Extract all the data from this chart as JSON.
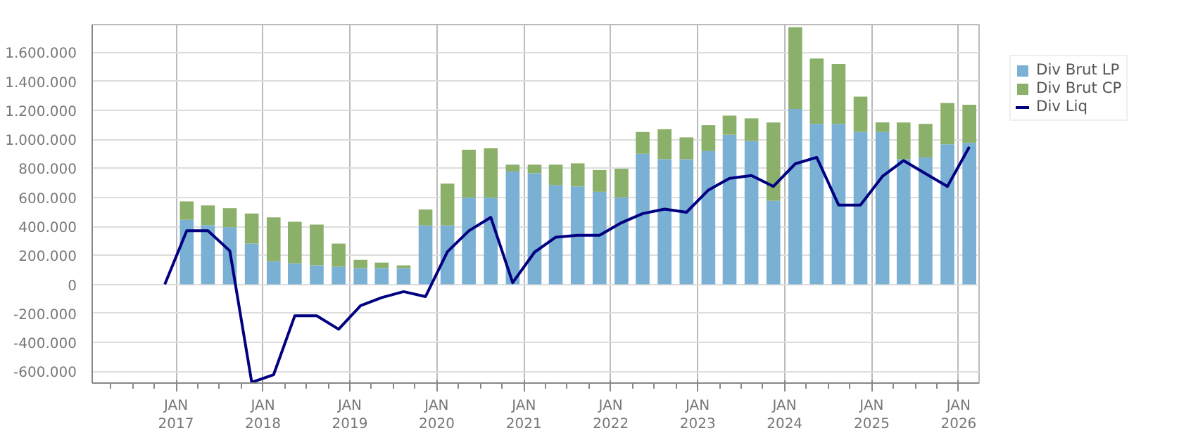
{
  "chart_data": {
    "type": "bar",
    "stacked": true,
    "x": [
      "2016-11-15",
      "2017-02-15",
      "2017-05-15",
      "2017-08-15",
      "2017-11-15",
      "2018-02-15",
      "2018-05-15",
      "2018-08-15",
      "2018-11-15",
      "2019-02-15",
      "2019-05-15",
      "2019-08-15",
      "2019-11-15",
      "2020-02-15",
      "2020-05-15",
      "2020-08-15",
      "2020-11-15",
      "2021-02-15",
      "2021-05-15",
      "2021-08-15",
      "2021-11-15",
      "2022-02-15",
      "2022-05-15",
      "2022-08-15",
      "2022-11-15",
      "2023-02-15",
      "2023-05-15",
      "2023-08-15",
      "2023-11-15",
      "2024-02-15",
      "2024-05-15",
      "2024-08-15",
      "2024-11-15",
      "2025-02-15",
      "2025-05-15",
      "2025-08-15",
      "2025-11-15",
      "2026-02-15"
    ],
    "series": [
      {
        "name": "Div Brut LP",
        "color": "#7ab0d4",
        "values": [
          0,
          445000,
          409000,
          394000,
          281000,
          159000,
          144000,
          131000,
          122000,
          112000,
          112000,
          112000,
          406000,
          406000,
          597000,
          597000,
          778000,
          766000,
          684000,
          675000,
          638000,
          600000,
          900000,
          863000,
          863000,
          919000,
          1031000,
          988000,
          575000,
          1209000,
          1106000,
          1106000,
          1050000,
          1050000,
          863000,
          875000,
          966000,
          975000
        ]
      },
      {
        "name": "Div Brut CP",
        "color": "#8bb06a",
        "values": [
          0,
          127000,
          135000,
          131000,
          207000,
          303000,
          287000,
          281000,
          159000,
          57000,
          38000,
          19000,
          110000,
          288000,
          331000,
          341000,
          47000,
          59000,
          141000,
          159000,
          150000,
          197000,
          150000,
          206000,
          150000,
          178000,
          132000,
          156000,
          541000,
          563000,
          450000,
          413000,
          244000,
          66000,
          253000,
          231000,
          284000,
          263000
        ]
      },
      {
        "name": "Div Liq",
        "type": "line",
        "color": "#000080",
        "values": [
          0,
          370000,
          370000,
          231000,
          -675000,
          -622000,
          -216000,
          -216000,
          -309000,
          -147000,
          -91000,
          -50000,
          -84000,
          225000,
          369000,
          462000,
          12000,
          222000,
          325000,
          338000,
          338000,
          425000,
          488000,
          519000,
          497000,
          650000,
          731000,
          750000,
          675000,
          831000,
          875000,
          547000,
          547000,
          744000,
          853000,
          763000,
          675000,
          947000
        ]
      }
    ],
    "xlim": [
      "2016-01-15",
      "2026-03-28"
    ],
    "xticks": [
      {
        "value": "2017-01-01",
        "label": "JAN\n2017"
      },
      {
        "value": "2018-01-01",
        "label": "JAN\n2018"
      },
      {
        "value": "2019-01-01",
        "label": "JAN\n2019"
      },
      {
        "value": "2020-01-01",
        "label": "JAN\n2020"
      },
      {
        "value": "2021-01-01",
        "label": "JAN\n2021"
      },
      {
        "value": "2022-01-01",
        "label": "JAN\n2022"
      },
      {
        "value": "2023-01-01",
        "label": "JAN\n2023"
      },
      {
        "value": "2024-01-01",
        "label": "JAN\n2024"
      },
      {
        "value": "2025-01-01",
        "label": "JAN\n2025"
      },
      {
        "value": "2026-01-01",
        "label": "JAN\n2026"
      }
    ],
    "ylim": [
      -680000,
      1790000
    ],
    "yticks": [
      {
        "value": -600000,
        "label": "-600.000"
      },
      {
        "value": -400000,
        "label": "-400.000"
      },
      {
        "value": -200000,
        "label": "-200.000"
      },
      {
        "value": 0,
        "label": "0"
      },
      {
        "value": 200000,
        "label": "200.000"
      },
      {
        "value": 400000,
        "label": "400.000"
      },
      {
        "value": 600000,
        "label": "600.000"
      },
      {
        "value": 800000,
        "label": "800.000"
      },
      {
        "value": 1000000,
        "label": "1.000.000"
      },
      {
        "value": 1200000,
        "label": "1.200.000"
      },
      {
        "value": 1400000,
        "label": "1.400.000"
      },
      {
        "value": 1600000,
        "label": "1.600.000"
      }
    ],
    "grid": true,
    "legend": "top right"
  }
}
